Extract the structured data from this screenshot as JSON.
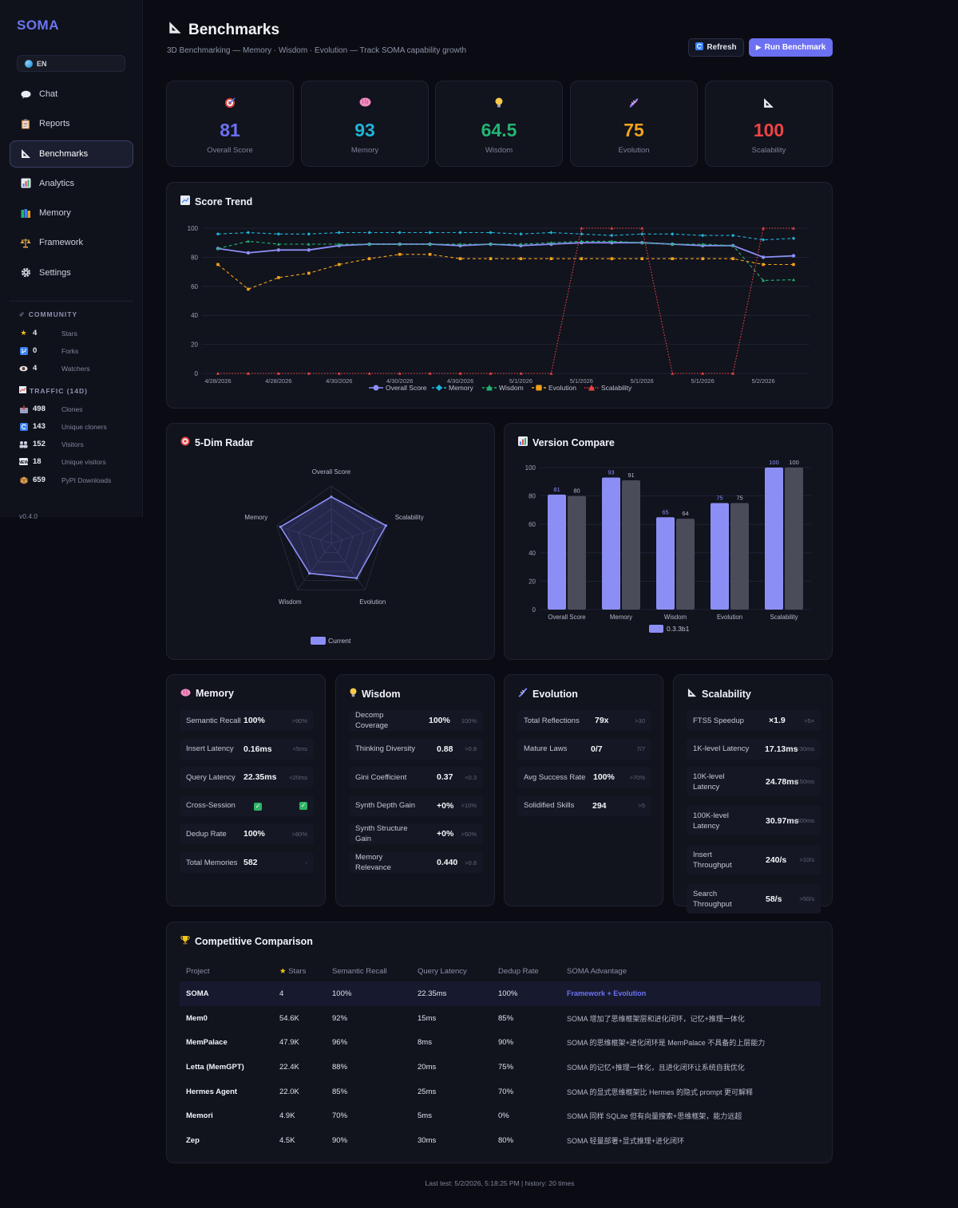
{
  "sidebar": {
    "logo": "SOMA",
    "lang": "EN",
    "nav": [
      {
        "label": "Chat",
        "icon": "chat-bubble-icon"
      },
      {
        "label": "Reports",
        "icon": "clipboard-icon"
      },
      {
        "label": "Benchmarks",
        "icon": "triangle-ruler-icon",
        "active": true
      },
      {
        "label": "Analytics",
        "icon": "bar-chart-icon"
      },
      {
        "label": "Memory",
        "icon": "books-icon"
      },
      {
        "label": "Framework",
        "icon": "scales-icon"
      },
      {
        "label": "Settings",
        "icon": "gear-icon"
      }
    ],
    "community_title": "COMMUNITY",
    "community": [
      {
        "value": "4",
        "label": "Stars",
        "icon": "star-icon"
      },
      {
        "value": "0",
        "label": "Forks",
        "icon": "fork-icon"
      },
      {
        "value": "4",
        "label": "Watchers",
        "icon": "eye-icon"
      }
    ],
    "traffic_title": "TRAFFIC (14D)",
    "traffic": [
      {
        "value": "498",
        "label": "Clones",
        "icon": "inbox-icon"
      },
      {
        "value": "143",
        "label": "Unique cloners",
        "icon": "refresh-icon"
      },
      {
        "value": "152",
        "label": "Visitors",
        "icon": "people-icon"
      },
      {
        "value": "18",
        "label": "Unique visitors",
        "icon": "new-icon"
      },
      {
        "value": "659",
        "label": "PyPI Downloads",
        "icon": "package-icon"
      }
    ],
    "version": "v0.4.0"
  },
  "header": {
    "title": "Benchmarks",
    "subtitle": "3D Benchmarking — Memory · Wisdom · Evolution — Track SOMA capability growth",
    "refresh_label": "Refresh",
    "run_label": "Run Benchmark"
  },
  "stats": [
    {
      "value": "81",
      "label": "Overall Score",
      "color": "#6c70f2",
      "icon": "target-icon"
    },
    {
      "value": "93",
      "label": "Memory",
      "color": "#1fb4d6",
      "icon": "brain-icon"
    },
    {
      "value": "64.5",
      "label": "Wisdom",
      "color": "#22b573",
      "icon": "lightbulb-icon"
    },
    {
      "value": "75",
      "label": "Evolution",
      "color": "#f0a21a",
      "icon": "dna-icon"
    },
    {
      "value": "100",
      "label": "Scalability",
      "color": "#ef4444",
      "icon": "ruler-icon"
    }
  ],
  "trend_title": "Score Trend",
  "radar_title": "5-Dim Radar",
  "compare_title": "Version Compare",
  "chart_data": [
    {
      "type": "line",
      "title": "Score Trend",
      "x": [
        "4/28/2026",
        "4/28/2026",
        "4/28/2026",
        "4/28/2026",
        "4/30/2026",
        "4/30/2026",
        "4/30/2026",
        "4/30/2026",
        "4/30/2026",
        "4/30/2026",
        "5/1/2026",
        "5/1/2026",
        "5/1/2026",
        "5/1/2026",
        "5/1/2026",
        "5/1/2026",
        "5/1/2026",
        "5/1/2026",
        "5/1/2026",
        "5/2/2026"
      ],
      "xticks": [
        "4/28/2026",
        "4/28/2026",
        "4/30/2026",
        "4/30/2026",
        "4/30/2026",
        "5/1/2026",
        "5/1/2026",
        "5/1/2026",
        "5/1/2026",
        "5/2/2026"
      ],
      "ylim": [
        0,
        100
      ],
      "yticks": [
        0,
        20,
        40,
        60,
        80,
        100
      ],
      "series": [
        {
          "name": "Overall Score",
          "color": "#8b8ff5",
          "style": "solid",
          "marker": "circle",
          "values": [
            86,
            83,
            85,
            85,
            88,
            89,
            89,
            89,
            88,
            89,
            88,
            89,
            90,
            90,
            90,
            89,
            88,
            88,
            80,
            81
          ]
        },
        {
          "name": "Memory",
          "color": "#1fb4d6",
          "style": "dashed",
          "marker": "diamond",
          "values": [
            96,
            97,
            96,
            96,
            97,
            97,
            97,
            97,
            97,
            97,
            96,
            97,
            96,
            95,
            96,
            96,
            95,
            95,
            92,
            93
          ]
        },
        {
          "name": "Wisdom",
          "color": "#22b573",
          "style": "dashed",
          "marker": "triangle",
          "values": [
            86,
            91,
            89,
            89,
            89,
            89,
            89,
            89,
            89,
            89,
            89,
            90,
            91,
            91,
            90,
            89,
            89,
            88,
            64,
            64.5
          ]
        },
        {
          "name": "Evolution",
          "color": "#f0a21a",
          "style": "dashed",
          "marker": "square",
          "values": [
            75,
            58,
            66,
            69,
            75,
            79,
            82,
            82,
            79,
            79,
            79,
            79,
            79,
            79,
            79,
            79,
            79,
            79,
            75,
            75
          ]
        },
        {
          "name": "Scalability",
          "color": "#ef4444",
          "style": "dotted",
          "marker": "triangle",
          "values": [
            0,
            0,
            0,
            0,
            0,
            0,
            0,
            0,
            0,
            0,
            0,
            0,
            100,
            100,
            100,
            0,
            0,
            0,
            100,
            100
          ]
        }
      ]
    },
    {
      "type": "radar",
      "title": "5-Dim Radar",
      "axes": [
        "Overall Score",
        "Scalability",
        "Evolution",
        "Wisdom",
        "Memory"
      ],
      "series": [
        {
          "name": "Current",
          "values": [
            81,
            100,
            75,
            64.5,
            93
          ]
        }
      ],
      "range": [
        0,
        100
      ]
    },
    {
      "type": "bar",
      "title": "Version Compare",
      "categories": [
        "Overall Score",
        "Memory",
        "Wisdom",
        "Evolution",
        "Scalability"
      ],
      "ylim": [
        0,
        100
      ],
      "yticks": [
        0,
        20,
        40,
        60,
        80,
        100
      ],
      "series": [
        {
          "name": "0.3.3b1",
          "color": "#8b8ff5",
          "values": [
            81,
            93,
            65,
            75,
            100
          ]
        },
        {
          "name": "",
          "color": "#4a4c5a",
          "values": [
            80,
            91,
            64,
            75,
            100
          ]
        }
      ]
    }
  ],
  "metrics": [
    {
      "title": "Memory",
      "icon": "brain-icon",
      "rows": [
        {
          "label": "Semantic Recall",
          "value": "100%",
          "target": ">90%"
        },
        {
          "label": "Insert Latency",
          "value": "0.16ms",
          "target": "<5ms"
        },
        {
          "label": "Query Latency",
          "value": "22.35ms",
          "target": "<20ms"
        },
        {
          "label": "Cross-Session",
          "value": "check",
          "target": "check"
        },
        {
          "label": "Dedup Rate",
          "value": "100%",
          "target": ">80%"
        },
        {
          "label": "Total Memories",
          "value": "582",
          "target": "-"
        }
      ]
    },
    {
      "title": "Wisdom",
      "icon": "lightbulb-icon",
      "rows": [
        {
          "label": "Decomp Coverage",
          "value": "100%",
          "target": "100%"
        },
        {
          "label": "Thinking Diversity",
          "value": "0.88",
          "target": ">0.8"
        },
        {
          "label": "Gini Coefficient",
          "value": "0.37",
          "target": "<0.3"
        },
        {
          "label": "Synth Depth Gain",
          "value": "+0%",
          "target": ">10%"
        },
        {
          "label": "Synth Structure Gain",
          "value": "+0%",
          "target": ">50%"
        },
        {
          "label": "Memory Relevance",
          "value": "0.440",
          "target": ">0.8"
        }
      ]
    },
    {
      "title": "Evolution",
      "icon": "dna-icon",
      "rows": [
        {
          "label": "Total Reflections",
          "value": "79x",
          "target": ">30"
        },
        {
          "label": "Mature Laws",
          "value": "0/7",
          "target": "7/7"
        },
        {
          "label": "Avg Success Rate",
          "value": "100%",
          "target": ">70%"
        },
        {
          "label": "Solidified Skills",
          "value": "294",
          "target": ">5"
        }
      ]
    },
    {
      "title": "Scalability",
      "icon": "ruler-icon",
      "rows": [
        {
          "label": "FTS5 Speedup",
          "value": "×1.9",
          "target": ">5×"
        },
        {
          "label": "1K-level Latency",
          "value": "17.13ms",
          "target": "<30ms"
        },
        {
          "label": "10K-level Latency",
          "value": "24.78ms",
          "target": "<150ms"
        },
        {
          "label": "100K-level Latency",
          "value": "30.97ms",
          "target": "<300ms"
        },
        {
          "label": "Insert Throughput",
          "value": "240/s",
          "target": ">10/s"
        },
        {
          "label": "Search Throughput",
          "value": "58/s",
          "target": ">50/s"
        }
      ]
    }
  ],
  "comparison": {
    "title": "Competitive Comparison",
    "headers": [
      "Project",
      "Stars",
      "Semantic Recall",
      "Query Latency",
      "Dedup Rate",
      "SOMA Advantage"
    ],
    "rows": [
      [
        "SOMA",
        "4",
        "100%",
        "22.35ms",
        "100%",
        "Framework + Evolution"
      ],
      [
        "Mem0",
        "54.6K",
        "92%",
        "15ms",
        "85%",
        "SOMA 增加了思维框架层和进化闭环，记忆+推理一体化"
      ],
      [
        "MemPalace",
        "47.9K",
        "96%",
        "8ms",
        "90%",
        "SOMA 的思维框架+进化闭环是 MemPalace 不具备的上层能力"
      ],
      [
        "Letta (MemGPT)",
        "22.4K",
        "88%",
        "20ms",
        "75%",
        "SOMA 的记忆+推理一体化，且进化闭环让系统自我优化"
      ],
      [
        "Hermes Agent",
        "22.0K",
        "85%",
        "25ms",
        "70%",
        "SOMA 的显式思维框架比 Hermes 的隐式 prompt 更可解释"
      ],
      [
        "Memori",
        "4.9K",
        "70%",
        "5ms",
        "0%",
        "SOMA 同样 SQLite 但有向量搜索+思维框架，能力远超"
      ],
      [
        "Zep",
        "4.5K",
        "90%",
        "30ms",
        "80%",
        "SOMA 轻量部署+显式推理+进化闭环"
      ]
    ]
  },
  "footer": "Last test: 5/2/2026, 5:18:25 PM | history: 20 times"
}
